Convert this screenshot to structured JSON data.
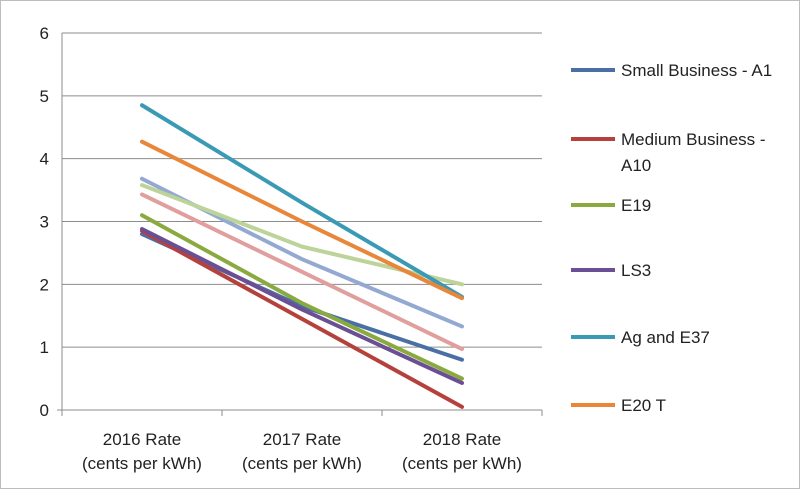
{
  "chart_data": {
    "type": "line",
    "categories": [
      [
        "2016 Rate",
        "(cents per kWh)"
      ],
      [
        "2017 Rate",
        "(cents per kWh)"
      ],
      [
        "2018 Rate",
        "(cents per kWh)"
      ]
    ],
    "ylim": [
      0,
      6
    ],
    "yticks": [
      0,
      1,
      2,
      3,
      4,
      5,
      6
    ],
    "grid": true,
    "legend_position": "right",
    "series": [
      {
        "name": "Small Business - A1",
        "label_lines": [
          "Small Business - A1"
        ],
        "color": "#4a6fa5",
        "values": [
          2.8,
          1.65,
          0.8
        ]
      },
      {
        "name": "Medium Business - A10",
        "label_lines": [
          "Medium Business -",
          "A10"
        ],
        "color": "#b5413c",
        "values": [
          2.85,
          1.45,
          0.05
        ]
      },
      {
        "name": "E19",
        "label_lines": [
          "E19"
        ],
        "color": "#8aaa3f",
        "values": [
          3.1,
          1.7,
          0.5
        ]
      },
      {
        "name": "LS3",
        "label_lines": [
          "LS3"
        ],
        "color": "#6b4f95",
        "values": [
          2.88,
          1.6,
          0.43
        ]
      },
      {
        "name": "Ag and E37",
        "label_lines": [
          "Ag and E37"
        ],
        "color": "#3a9ab5",
        "values": [
          4.85,
          3.3,
          1.8
        ]
      },
      {
        "name": "E20 T",
        "label_lines": [
          "E20 T"
        ],
        "color": "#e8863a",
        "values": [
          4.27,
          3.0,
          1.78
        ]
      },
      {
        "name": "",
        "label_lines": [],
        "color": "#93a9d2",
        "values": [
          3.68,
          2.4,
          1.33
        ]
      },
      {
        "name": "",
        "label_lines": [],
        "color": "#e09f9c",
        "values": [
          3.43,
          2.2,
          0.97
        ]
      },
      {
        "name": "",
        "label_lines": [],
        "color": "#bcd39a",
        "values": [
          3.58,
          2.6,
          2.0
        ]
      }
    ]
  }
}
